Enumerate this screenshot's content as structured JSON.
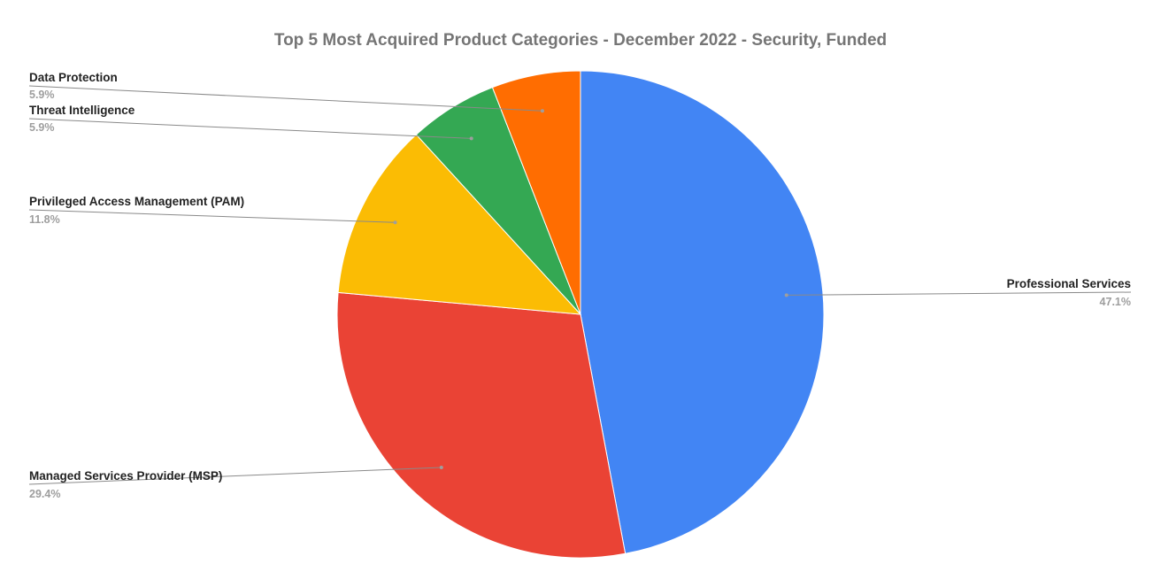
{
  "chart_data": {
    "type": "pie",
    "title": "Top 5 Most Acquired Product Categories - December 2022 - Security, Funded",
    "slices": [
      {
        "label": "Professional Services",
        "value": 47.1,
        "value_label": "47.1%",
        "color": "#4285f4"
      },
      {
        "label": "Managed Services Provider (MSP)",
        "value": 29.4,
        "value_label": "29.4%",
        "color": "#ea4335"
      },
      {
        "label": "Privileged Access Management (PAM)",
        "value": 11.8,
        "value_label": "11.8%",
        "color": "#fbbc04"
      },
      {
        "label": "Threat Intelligence",
        "value": 5.9,
        "value_label": "5.9%",
        "color": "#34a853"
      },
      {
        "label": "Data Protection",
        "value": 5.9,
        "value_label": "5.9%",
        "color": "#ff6d01"
      }
    ],
    "start_angle": "12 o'clock",
    "direction": "clockwise",
    "legend": "none"
  }
}
